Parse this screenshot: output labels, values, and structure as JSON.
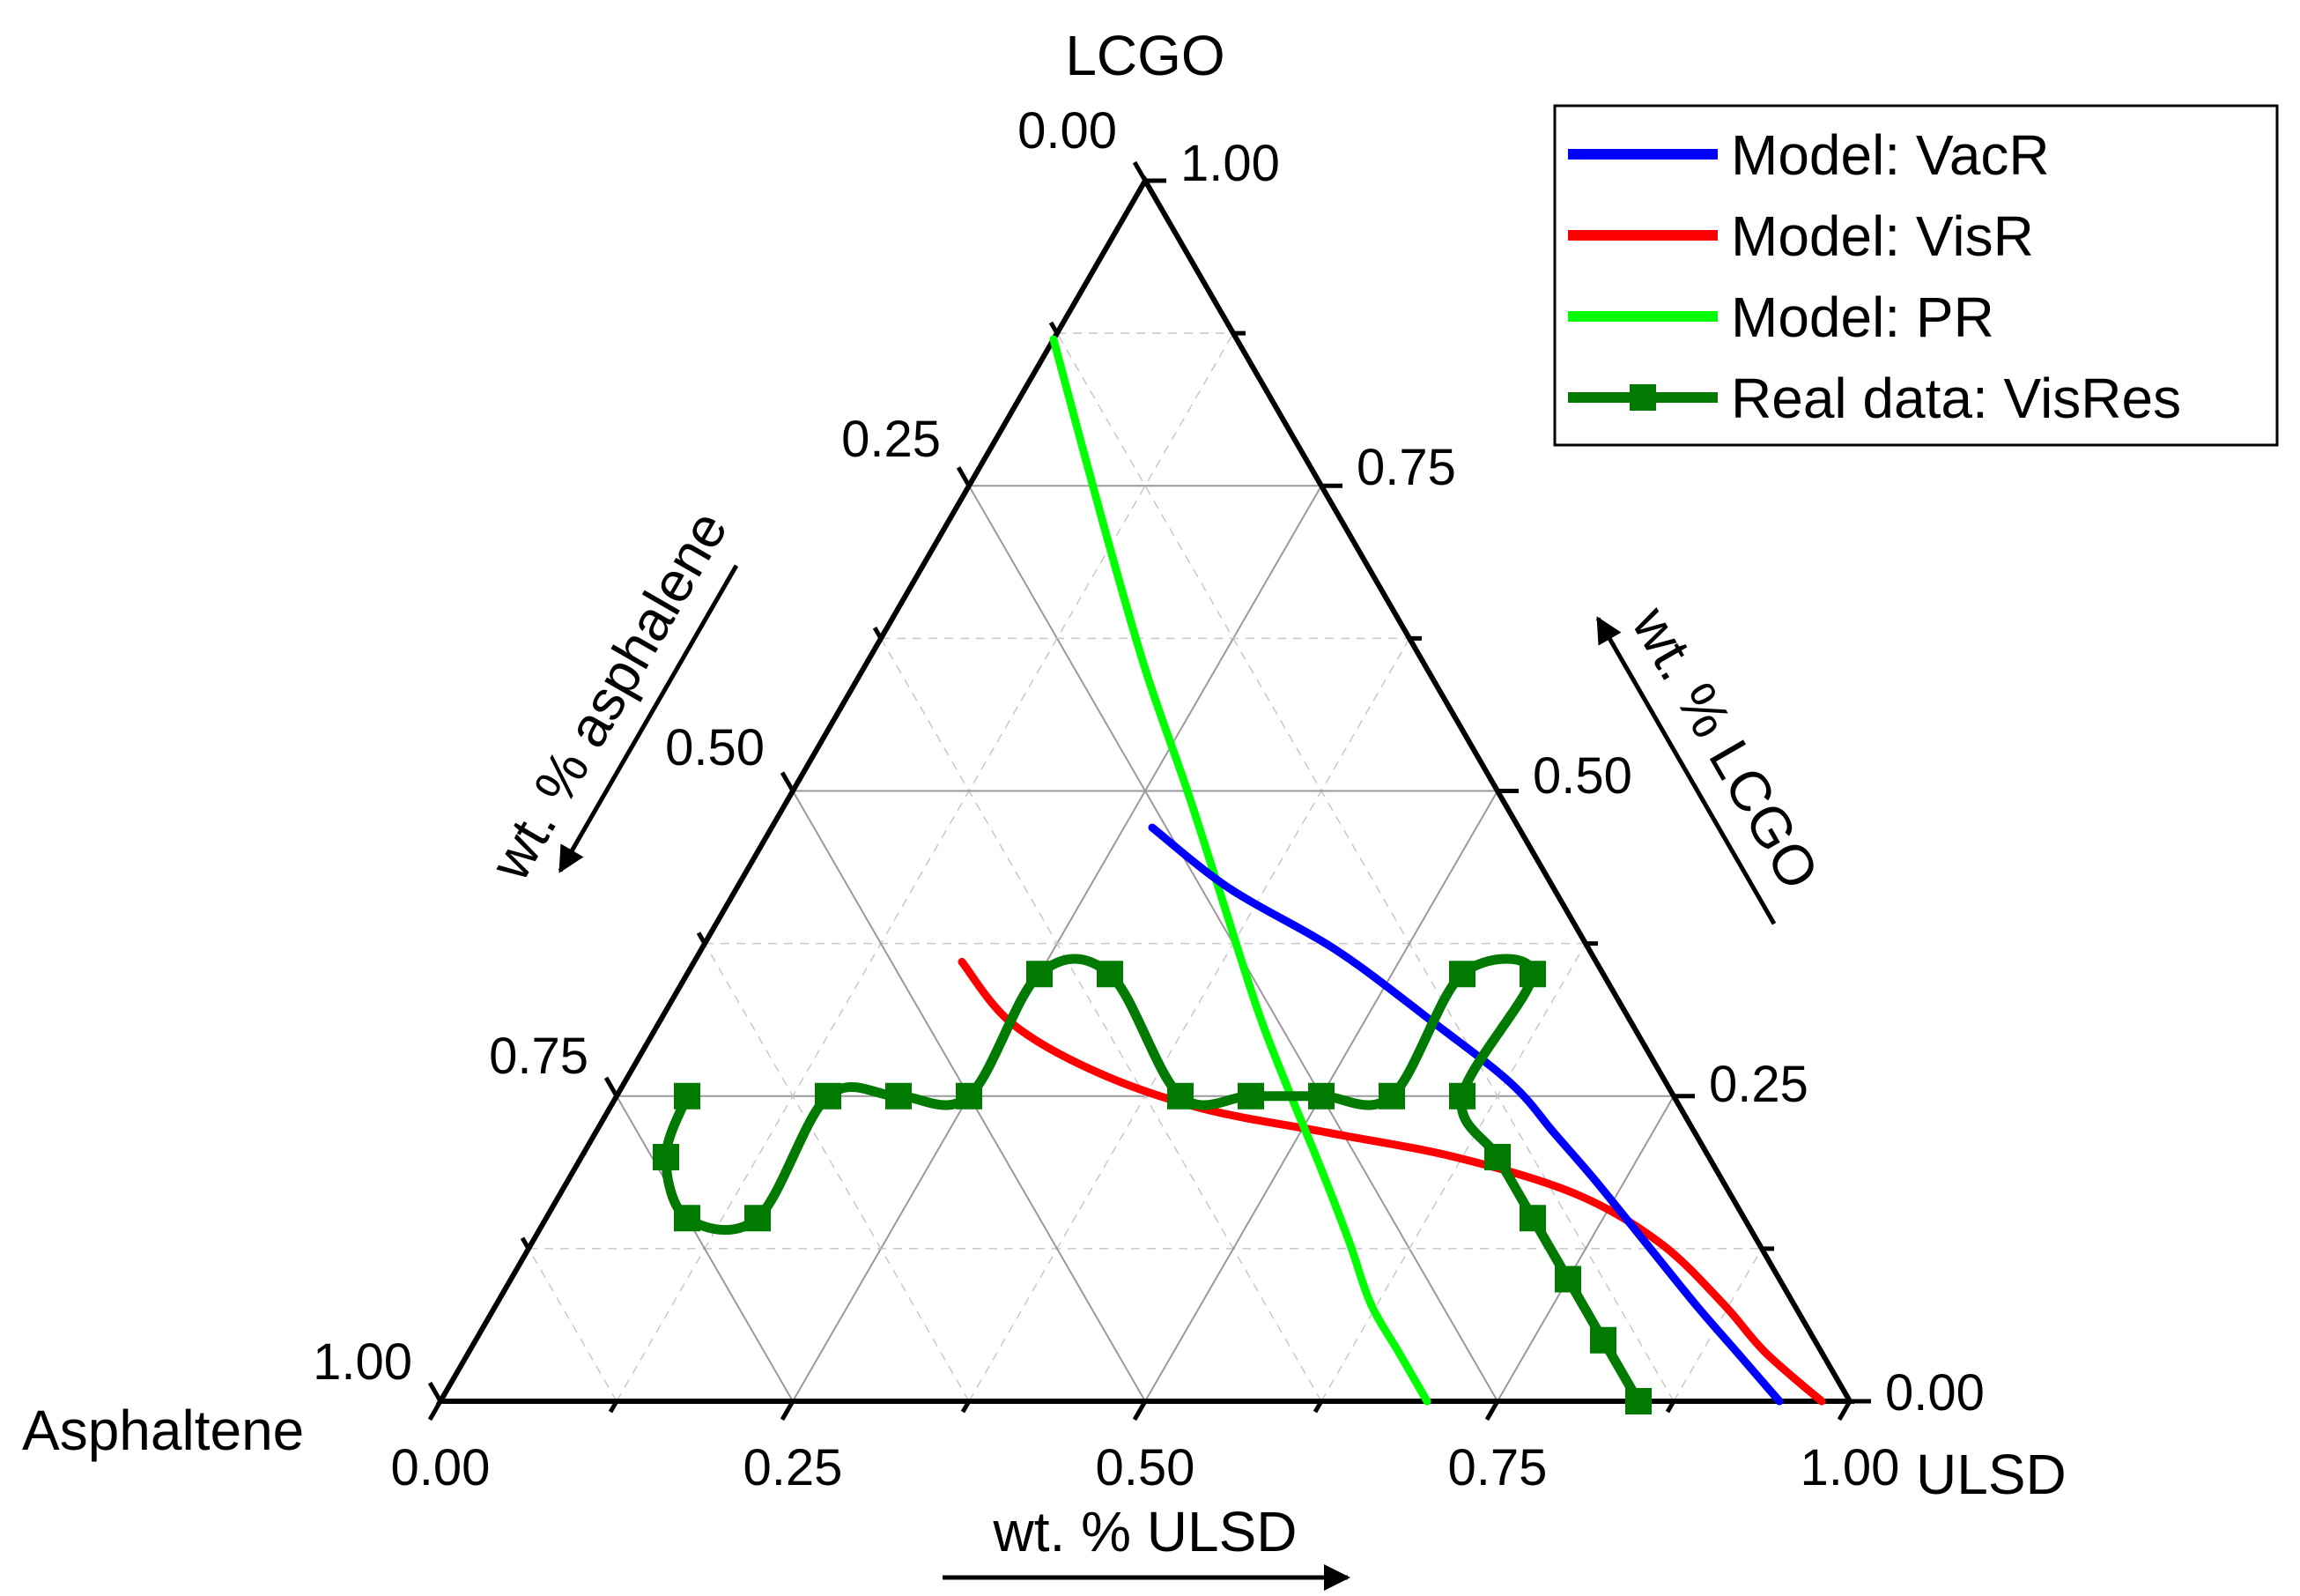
{
  "chart_data": {
    "type": "ternary",
    "vertices": {
      "top": "LCGO",
      "left": "Asphaltene",
      "right": "ULSD"
    },
    "axis_titles": {
      "left": "wt. % asphalene",
      "right": "wt. % LCGO",
      "bottom": "wt. % ULSD"
    },
    "tick_labels": {
      "left": [
        "0.00",
        "0.25",
        "0.50",
        "0.75",
        "1.00"
      ],
      "right": [
        "0.00",
        "0.25",
        "0.50",
        "0.75",
        "1.00"
      ],
      "bottom": [
        "0.00",
        "0.25",
        "0.50",
        "0.75",
        "1.00"
      ]
    },
    "ticks": [
      0,
      0.25,
      0.5,
      0.75,
      1.0
    ],
    "grid": true,
    "legend_position": "top-right",
    "colors": {
      "VacR": "#0000ff",
      "VisR": "#ff0000",
      "PR": "#00ff00",
      "VisRes": "#007a00"
    },
    "series": [
      {
        "name": "Model: VacR",
        "key": "VacR",
        "points": [
          {
            "ulsd": 0.27,
            "lcgo": 0.47
          },
          {
            "ulsd": 0.35,
            "lcgo": 0.42
          },
          {
            "ulsd": 0.45,
            "lcgo": 0.37
          },
          {
            "ulsd": 0.55,
            "lcgo": 0.31
          },
          {
            "ulsd": 0.63,
            "lcgo": 0.26
          },
          {
            "ulsd": 0.68,
            "lcgo": 0.22
          },
          {
            "ulsd": 0.73,
            "lcgo": 0.18
          },
          {
            "ulsd": 0.79,
            "lcgo": 0.13
          },
          {
            "ulsd": 0.85,
            "lcgo": 0.08
          },
          {
            "ulsd": 0.9,
            "lcgo": 0.04
          },
          {
            "ulsd": 0.95,
            "lcgo": 0.0
          }
        ]
      },
      {
        "name": "Model: VisR",
        "key": "VisR",
        "points": [
          {
            "ulsd": 0.19,
            "lcgo": 0.36
          },
          {
            "ulsd": 0.25,
            "lcgo": 0.31
          },
          {
            "ulsd": 0.33,
            "lcgo": 0.27
          },
          {
            "ulsd": 0.42,
            "lcgo": 0.24
          },
          {
            "ulsd": 0.52,
            "lcgo": 0.22
          },
          {
            "ulsd": 0.62,
            "lcgo": 0.2
          },
          {
            "ulsd": 0.72,
            "lcgo": 0.17
          },
          {
            "ulsd": 0.8,
            "lcgo": 0.13
          },
          {
            "ulsd": 0.87,
            "lcgo": 0.08
          },
          {
            "ulsd": 0.92,
            "lcgo": 0.04
          },
          {
            "ulsd": 0.98,
            "lcgo": 0.0
          }
        ]
      },
      {
        "name": "Model: PR",
        "key": "PR",
        "points": [
          {
            "ulsd": 0.0,
            "lcgo": 0.87
          },
          {
            "ulsd": 0.11,
            "lcgo": 0.72
          },
          {
            "ulsd": 0.2,
            "lcgo": 0.6
          },
          {
            "ulsd": 0.28,
            "lcgo": 0.5
          },
          {
            "ulsd": 0.35,
            "lcgo": 0.41
          },
          {
            "ulsd": 0.42,
            "lcgo": 0.32
          },
          {
            "ulsd": 0.47,
            "lcgo": 0.26
          },
          {
            "ulsd": 0.53,
            "lcgo": 0.19
          },
          {
            "ulsd": 0.58,
            "lcgo": 0.13
          },
          {
            "ulsd": 0.62,
            "lcgo": 0.08
          },
          {
            "ulsd": 0.66,
            "lcgo": 0.04
          },
          {
            "ulsd": 0.7,
            "lcgo": 0.0
          }
        ]
      },
      {
        "name": "Real data: VisRes",
        "key": "VisRes",
        "points": [
          {
            "ulsd": 0.05,
            "lcgo": 0.25
          },
          {
            "ulsd": 0.06,
            "lcgo": 0.2
          },
          {
            "ulsd": 0.1,
            "lcgo": 0.15
          },
          {
            "ulsd": 0.15,
            "lcgo": 0.15
          },
          {
            "ulsd": 0.15,
            "lcgo": 0.25
          },
          {
            "ulsd": 0.2,
            "lcgo": 0.25
          },
          {
            "ulsd": 0.25,
            "lcgo": 0.25
          },
          {
            "ulsd": 0.25,
            "lcgo": 0.35
          },
          {
            "ulsd": 0.3,
            "lcgo": 0.35
          },
          {
            "ulsd": 0.4,
            "lcgo": 0.25
          },
          {
            "ulsd": 0.45,
            "lcgo": 0.25
          },
          {
            "ulsd": 0.5,
            "lcgo": 0.25
          },
          {
            "ulsd": 0.55,
            "lcgo": 0.25
          },
          {
            "ulsd": 0.55,
            "lcgo": 0.35
          },
          {
            "ulsd": 0.6,
            "lcgo": 0.35
          },
          {
            "ulsd": 0.6,
            "lcgo": 0.25
          },
          {
            "ulsd": 0.65,
            "lcgo": 0.2
          },
          {
            "ulsd": 0.7,
            "lcgo": 0.15
          },
          {
            "ulsd": 0.75,
            "lcgo": 0.1
          },
          {
            "ulsd": 0.8,
            "lcgo": 0.05
          },
          {
            "ulsd": 0.85,
            "lcgo": 0.0
          }
        ]
      }
    ],
    "legend": [
      {
        "label": "Model: VacR",
        "key": "VacR",
        "marker": false
      },
      {
        "label": "Model: VisR",
        "key": "VisR",
        "marker": false
      },
      {
        "label": "Model: PR",
        "key": "PR",
        "marker": false
      },
      {
        "label": "Real data: VisRes",
        "key": "VisRes",
        "marker": true
      }
    ]
  }
}
